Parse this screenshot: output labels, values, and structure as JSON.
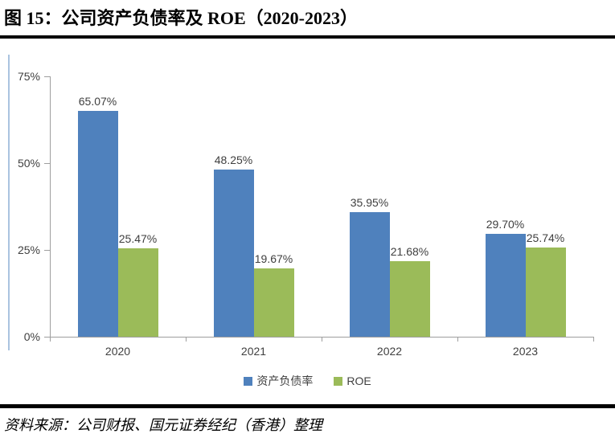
{
  "header": {
    "title": "图 15：公司资产负债率及 ROE（2020-2023）"
  },
  "chart_data": {
    "type": "bar",
    "title": "公司资产负债率及ROE（2020-2023）",
    "categories": [
      "2020",
      "2021",
      "2022",
      "2023"
    ],
    "series": [
      {
        "name": "资产负债率",
        "color": "#4F81BD",
        "values": [
          65.07,
          48.25,
          35.95,
          29.7
        ],
        "labels": [
          "65.07%",
          "48.25%",
          "35.95%",
          "29.70%"
        ]
      },
      {
        "name": "ROE",
        "color": "#9BBB59",
        "values": [
          25.47,
          19.67,
          21.68,
          25.74
        ],
        "labels": [
          "25.47%",
          "19.67%",
          "21.68%",
          "25.74%"
        ]
      }
    ],
    "ylim": [
      0,
      75
    ],
    "yticks": [
      {
        "value": 75,
        "label": "75%"
      },
      {
        "value": 50,
        "label": "50%"
      },
      {
        "value": 25,
        "label": "25%"
      },
      {
        "value": 0,
        "label": "0%"
      }
    ],
    "grid": false,
    "legend_position": "bottom"
  },
  "source": {
    "text": "资料来源：公司财报、国元证券经纪（香港）整理"
  },
  "colors": {
    "axis": "#9E9E9E",
    "tick_text": "#404040",
    "data_label_text": "#3F3F3F",
    "accent_line": "#AAC4E0",
    "rule": "#000000"
  }
}
